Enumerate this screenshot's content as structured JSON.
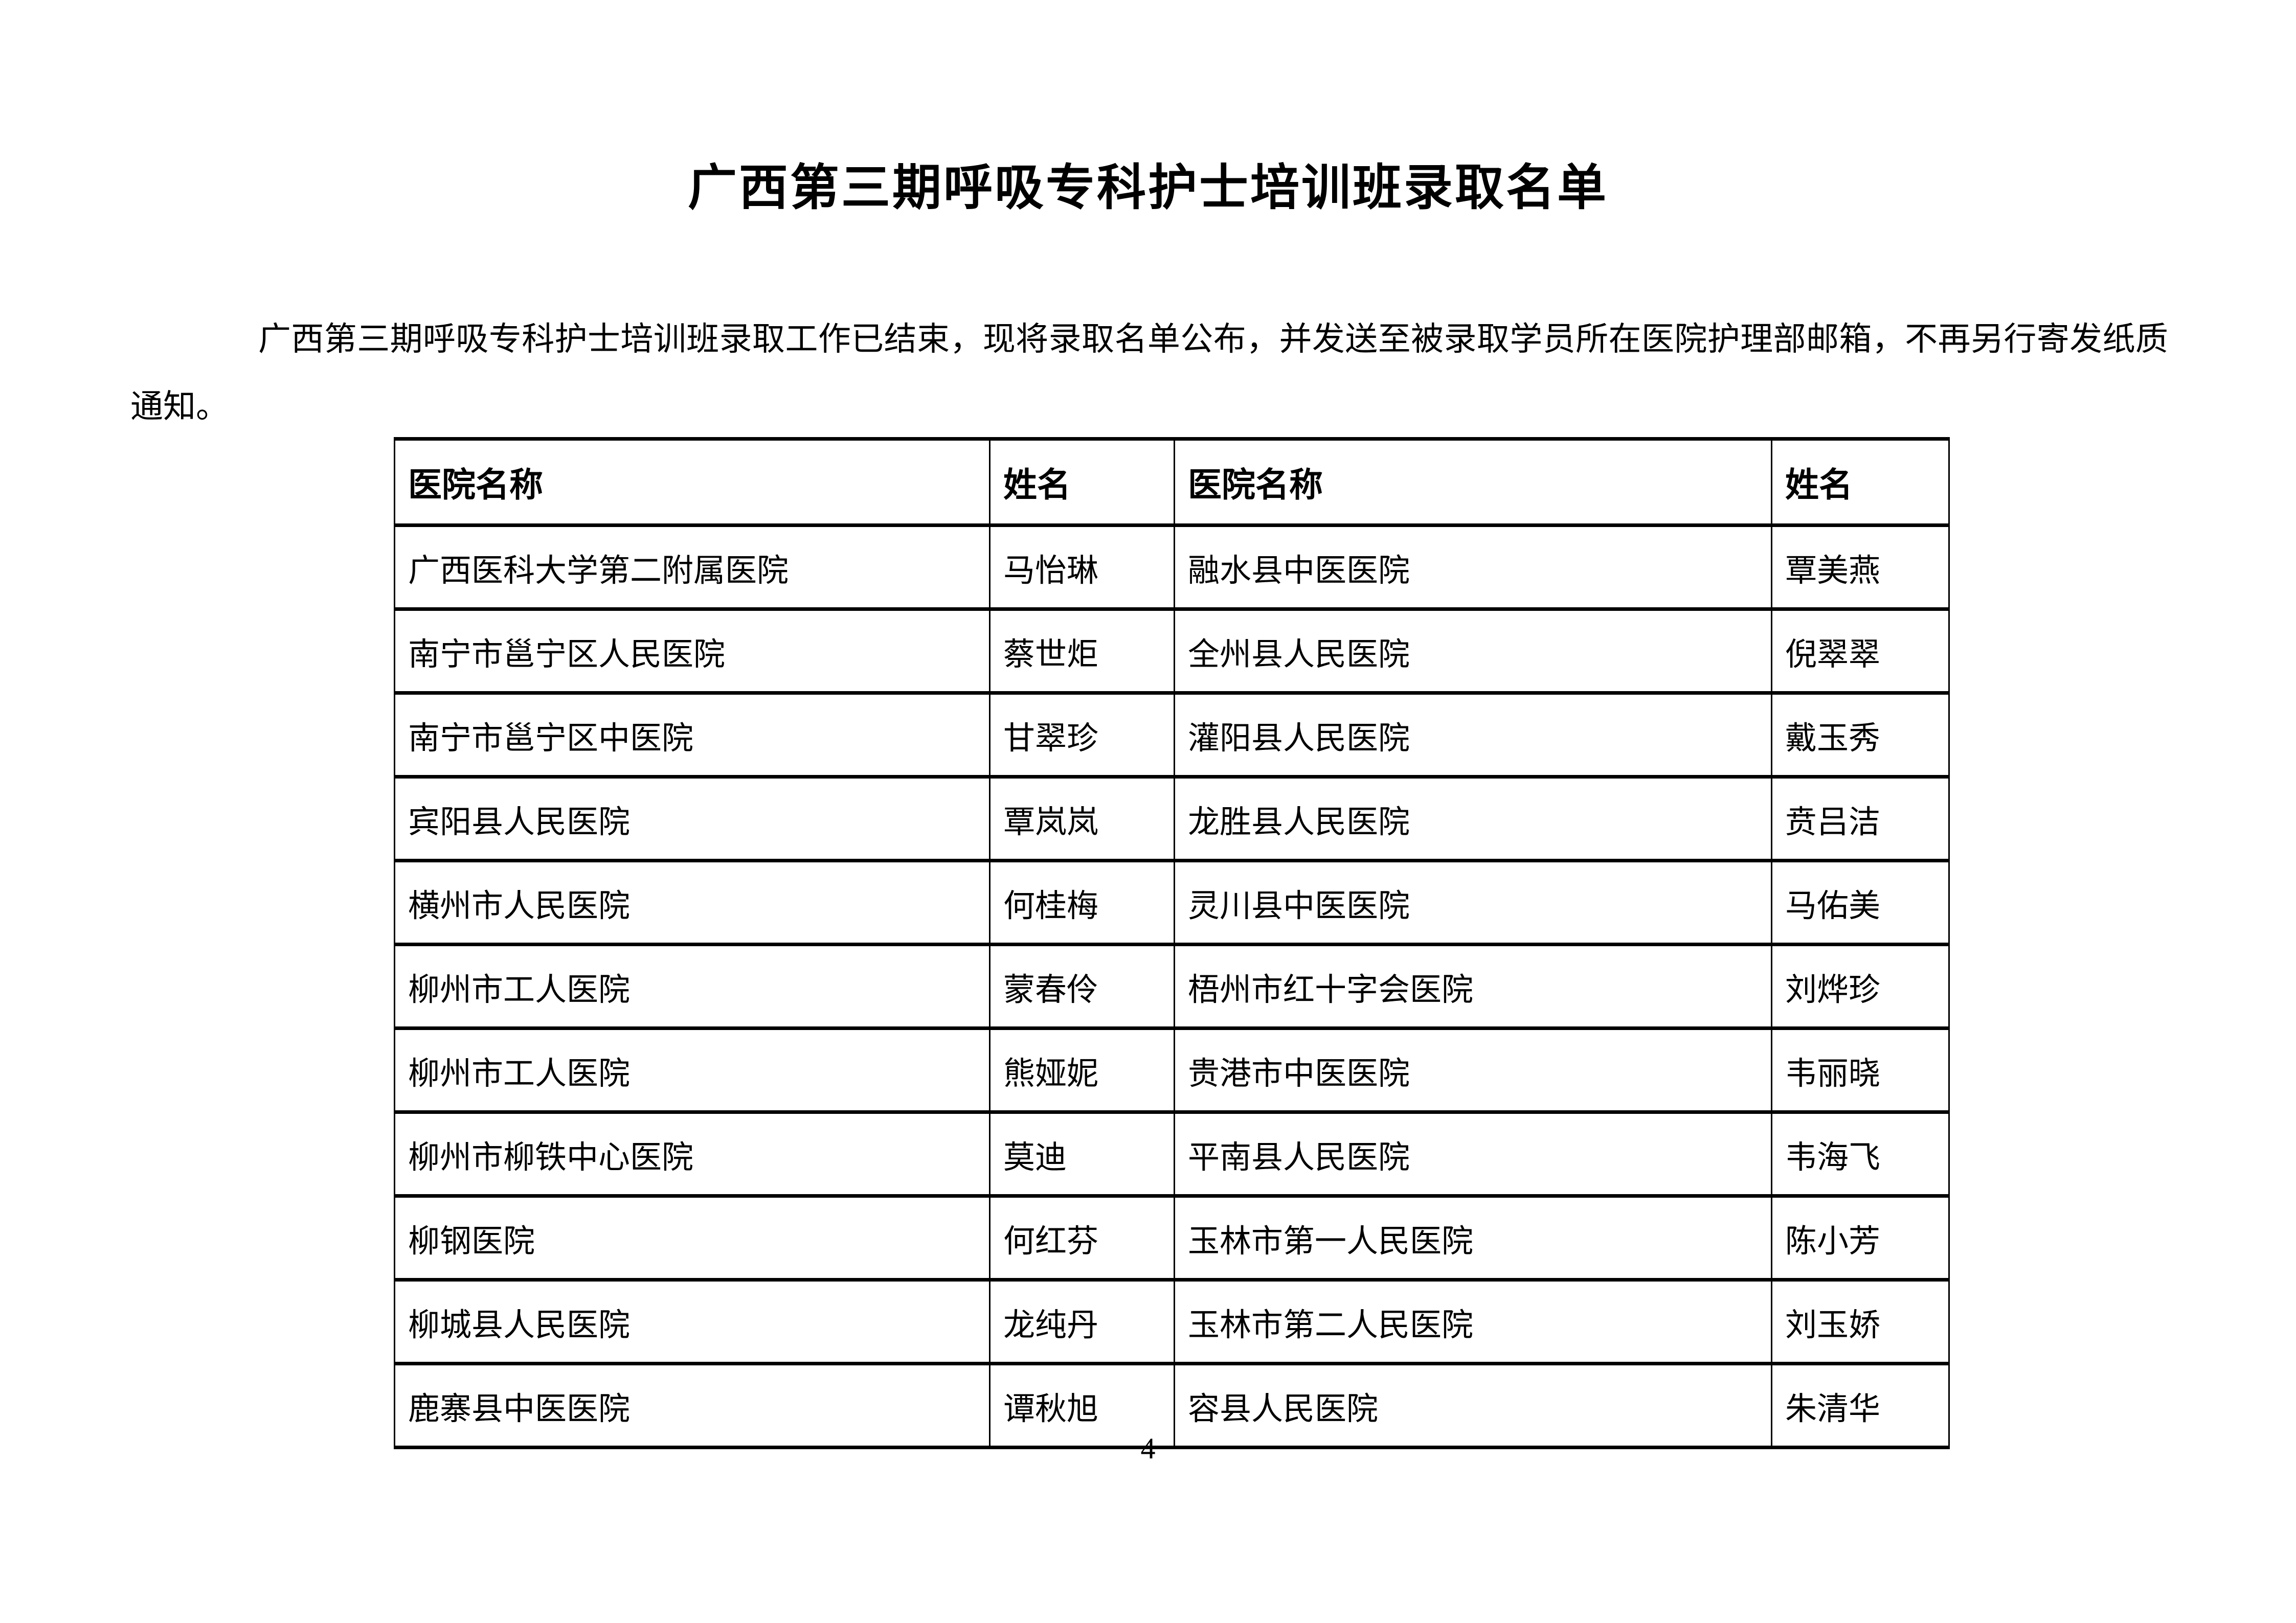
{
  "page": {
    "title": "广西第三期呼吸专科护士培训班录取名单",
    "intro": "广西第三期呼吸专科护士培训班录取工作已结束，现将录取名单公布，并发送至被录取学员所在医院护理部邮箱，不再另行寄发纸质通知。",
    "page_number": "4"
  },
  "table": {
    "headers": [
      "医院名称",
      "姓名",
      "医院名称",
      "姓名"
    ],
    "rows": [
      [
        "广西医科大学第二附属医院",
        "马怡琳",
        "融水县中医医院",
        "覃美燕"
      ],
      [
        "南宁市邕宁区人民医院",
        "蔡世炬",
        "全州县人民医院",
        "倪翠翠"
      ],
      [
        "南宁市邕宁区中医院",
        "甘翠珍",
        "灌阳县人民医院",
        "戴玉秀"
      ],
      [
        "宾阳县人民医院",
        "覃岚岚",
        "龙胜县人民医院",
        "贲吕洁"
      ],
      [
        "横州市人民医院",
        "何桂梅",
        "灵川县中医医院",
        "马佑美"
      ],
      [
        "柳州市工人医院",
        "蒙春伶",
        "梧州市红十字会医院",
        "刘烨珍"
      ],
      [
        "柳州市工人医院",
        "熊娅妮",
        "贵港市中医医院",
        "韦丽晓"
      ],
      [
        "柳州市柳铁中心医院",
        "莫迪",
        "平南县人民医院",
        "韦海飞"
      ],
      [
        "柳钢医院",
        "何红芬",
        "玉林市第一人民医院",
        "陈小芳"
      ],
      [
        "柳城县人民医院",
        "龙纯丹",
        "玉林市第二人民医院",
        "刘玉娇"
      ],
      [
        "鹿寨县中医医院",
        "谭秋旭",
        "容县人民医院",
        "朱清华"
      ]
    ]
  }
}
